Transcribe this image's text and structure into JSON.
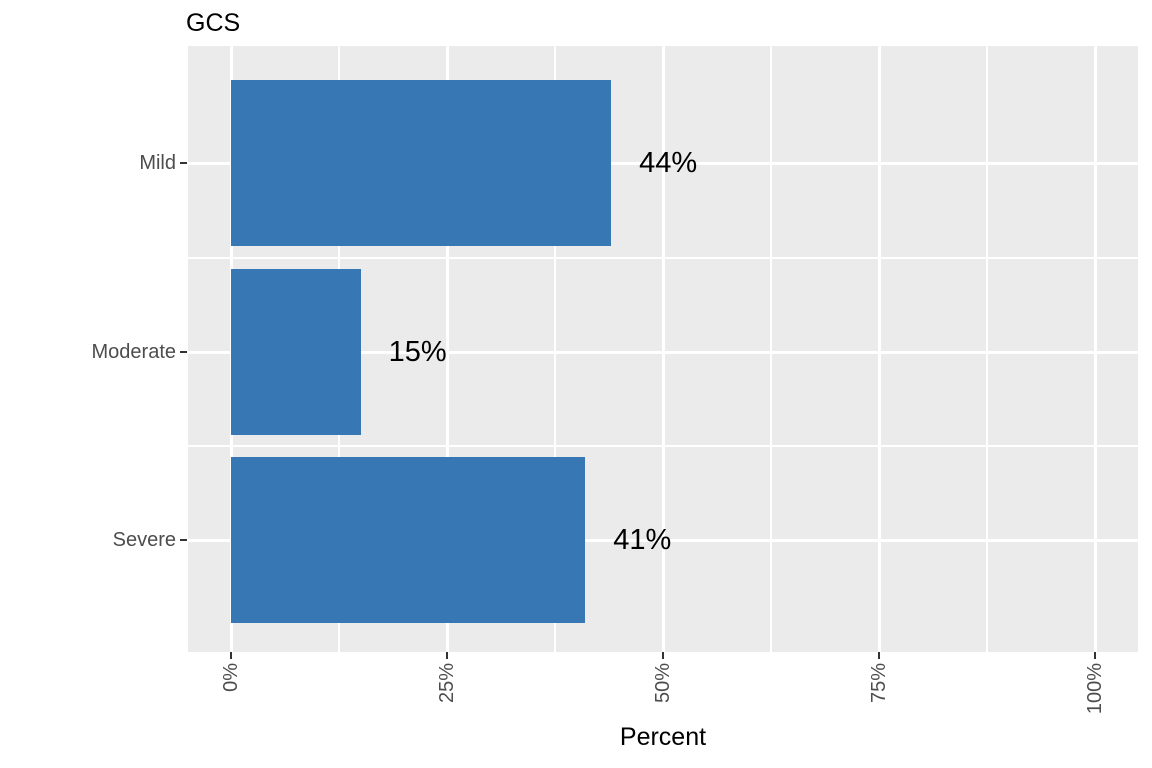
{
  "chart_data": {
    "type": "bar",
    "orientation": "horizontal",
    "title": "GCS",
    "xlabel": "Percent",
    "ylabel": "",
    "categories": [
      "Mild",
      "Moderate",
      "Severe"
    ],
    "values": [
      44,
      15,
      41
    ],
    "value_labels": [
      "44%",
      "15%",
      "41%"
    ],
    "x_tick_labels": [
      "0%",
      "25%",
      "50%",
      "75%",
      "100%"
    ],
    "x_tick_values": [
      0,
      25,
      50,
      75,
      100
    ],
    "x_minor_values": [
      12.5,
      37.5,
      62.5,
      87.5
    ],
    "xlim": [
      0,
      100
    ],
    "grid": "major+minor, white on gray panel",
    "legend_position": "none",
    "colors": {
      "bar_fill": "#3778B4",
      "panel_background": "#EBEBEB",
      "gridline": "#FFFFFF",
      "axis_text": "#4D4D4D",
      "tick_mark": "#333333",
      "label_text": "#000000",
      "title_text": "#000000"
    }
  }
}
